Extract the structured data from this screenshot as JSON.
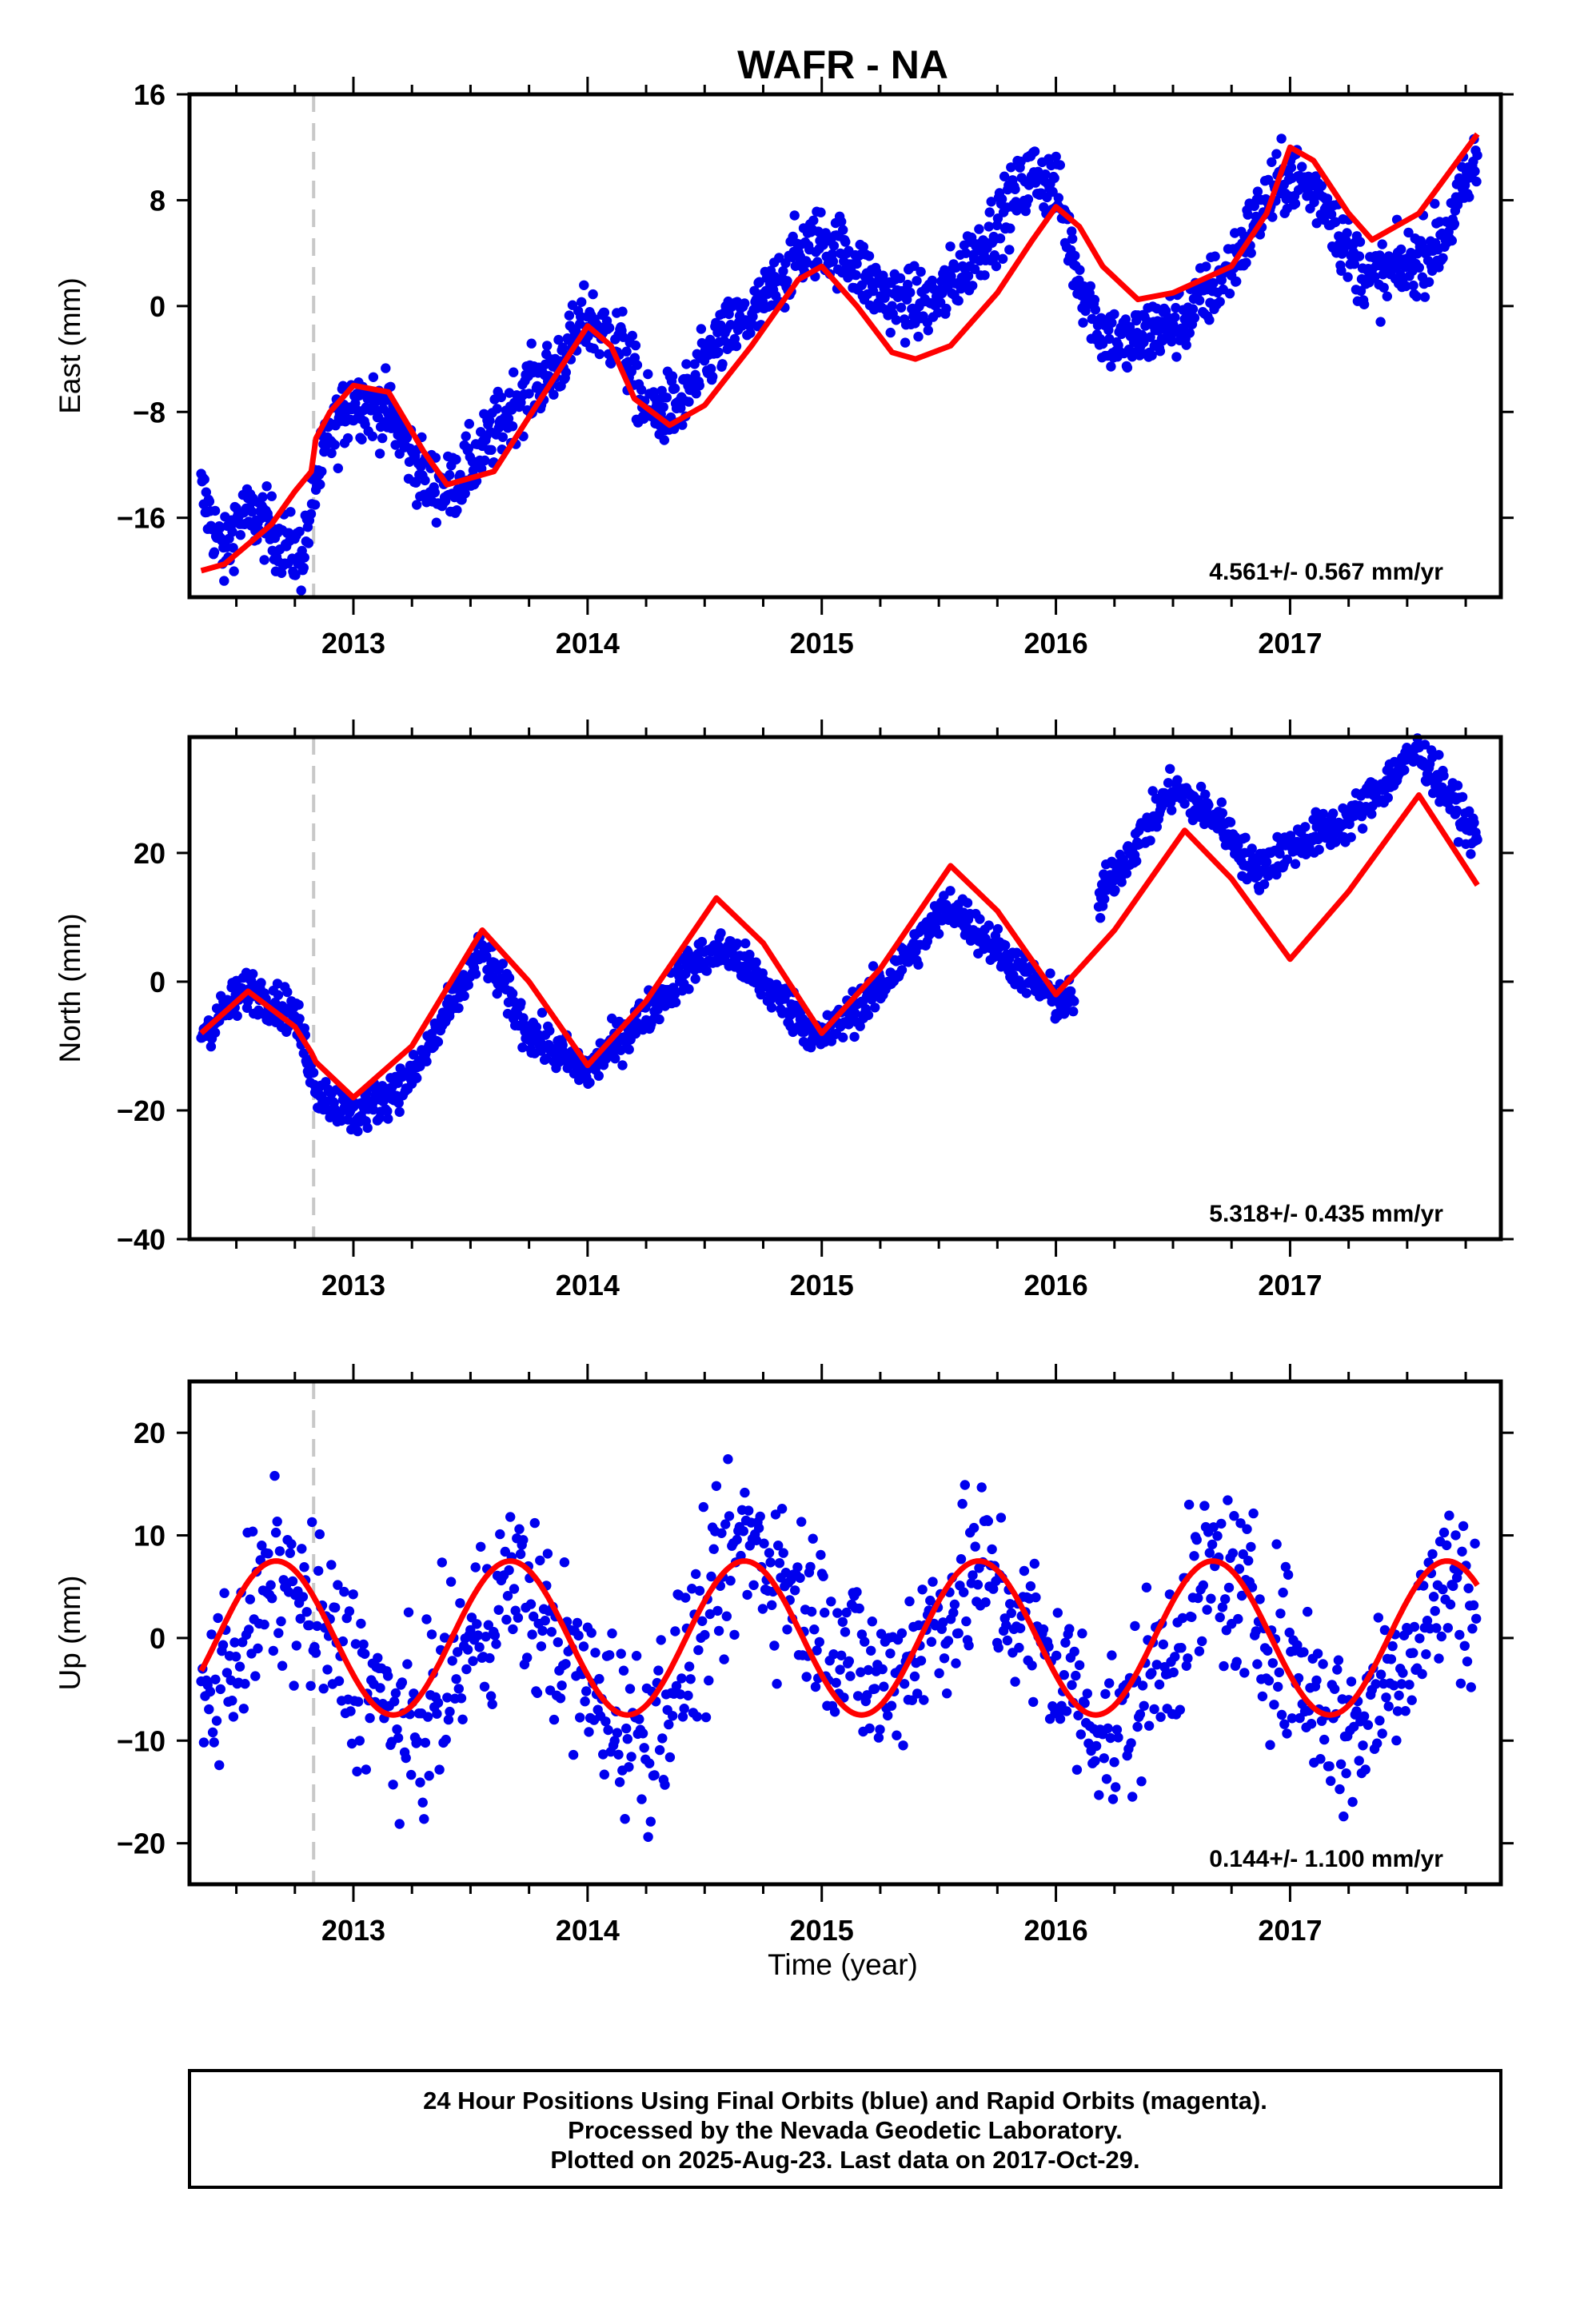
{
  "chart_data": {
    "title": "WAFR - NA",
    "footer": [
      "24 Hour Positions Using Final Orbits (blue) and Rapid Orbits (magenta).",
      "Processed by the Nevada Geodetic Laboratory.",
      "Plotted on 2025-Aug-23. Last data on 2017-Oct-29."
    ],
    "xlabel": "Time (year)",
    "xlim": [
      2012.3,
      2017.9
    ],
    "xticks": [
      "2013",
      "2014",
      "2015",
      "2016",
      "2017"
    ],
    "colors": {
      "points": "#0000ee",
      "model": "#ff0000",
      "event": "#c8c8c8"
    },
    "event_line_x": 2012.83,
    "panels": [
      {
        "name": "east",
        "type": "scatter",
        "ylabel": "East (mm)",
        "ylim": [
          -22,
          16
        ],
        "yticks": [
          "-16",
          "-8",
          "0",
          "8",
          "16"
        ],
        "rate_label": "4.561+/- 0.567 mm/yr",
        "model": {
          "x": [
            2012.35,
            2012.45,
            2012.55,
            2012.65,
            2012.75,
            2012.82,
            2012.84,
            2012.9,
            2013.0,
            2013.15,
            2013.3,
            2013.4,
            2013.6,
            2013.8,
            2014.0,
            2014.1,
            2014.2,
            2014.35,
            2014.5,
            2014.7,
            2014.9,
            2015.0,
            2015.15,
            2015.3,
            2015.4,
            2015.55,
            2015.75,
            2015.9,
            2016.0,
            2016.1,
            2016.2,
            2016.35,
            2016.5,
            2016.75,
            2016.9,
            2017.0,
            2017.1,
            2017.25,
            2017.35,
            2017.55,
            2017.8
          ],
          "y": [
            -20,
            -19.5,
            -18,
            -16.5,
            -14,
            -12.5,
            -10,
            -8,
            -6,
            -6.5,
            -11,
            -13.5,
            -12.5,
            -7,
            -1.5,
            -3,
            -7,
            -9,
            -7.5,
            -3,
            2,
            3,
            0,
            -3.5,
            -4,
            -3,
            1,
            5,
            7.5,
            6,
            3,
            0.5,
            1,
            3,
            7,
            12,
            11,
            7,
            5,
            7,
            13
          ]
        },
        "points_path": [
          [
            2012.35,
            -14
          ],
          [
            2012.45,
            -19
          ],
          [
            2012.5,
            -16
          ],
          [
            2012.6,
            -16
          ],
          [
            2012.7,
            -18
          ],
          [
            2012.78,
            -19
          ],
          [
            2012.83,
            -14
          ],
          [
            2012.9,
            -10
          ],
          [
            2013.0,
            -7
          ],
          [
            2013.15,
            -8
          ],
          [
            2013.3,
            -13
          ],
          [
            2013.4,
            -14
          ],
          [
            2013.55,
            -11
          ],
          [
            2013.7,
            -7
          ],
          [
            2013.85,
            -5
          ],
          [
            2014.0,
            -1
          ],
          [
            2014.15,
            -3
          ],
          [
            2014.25,
            -8
          ],
          [
            2014.4,
            -7.5
          ],
          [
            2014.55,
            -3
          ],
          [
            2014.75,
            0
          ],
          [
            2014.9,
            4
          ],
          [
            2015.0,
            5
          ],
          [
            2015.1,
            4
          ],
          [
            2015.25,
            1
          ],
          [
            2015.4,
            0
          ],
          [
            2015.5,
            0.5
          ],
          [
            2015.7,
            5
          ],
          [
            2015.9,
            10
          ],
          [
            2016.0,
            9
          ],
          [
            2016.1,
            2
          ],
          [
            2016.2,
            -2
          ],
          [
            2016.3,
            -3
          ],
          [
            2016.4,
            -2
          ],
          [
            2016.55,
            -1
          ],
          [
            2016.75,
            3
          ],
          [
            2016.9,
            8
          ],
          [
            2017.0,
            10
          ],
          [
            2017.15,
            8
          ],
          [
            2017.25,
            4
          ],
          [
            2017.35,
            2
          ],
          [
            2017.5,
            3
          ],
          [
            2017.65,
            5
          ],
          [
            2017.8,
            11
          ]
        ]
      },
      {
        "name": "north",
        "type": "scatter",
        "ylabel": "North (mm)",
        "ylim": [
          -40,
          38
        ],
        "yticks": [
          "-40",
          "-20",
          "0",
          "20"
        ],
        "rate_label": "5.318+/- 0.435 mm/yr",
        "model": {
          "x": [
            2012.35,
            2012.55,
            2012.75,
            2012.82,
            2012.84,
            2013.0,
            2013.25,
            2013.55,
            2013.75,
            2014.0,
            2014.25,
            2014.55,
            2014.75,
            2015.0,
            2015.25,
            2015.55,
            2015.75,
            2016.0,
            2016.25,
            2016.55,
            2016.75,
            2017.0,
            2017.25,
            2017.55,
            2017.8
          ],
          "y": [
            -8,
            -1.5,
            -7,
            -11,
            -12.5,
            -18,
            -10,
            8,
            0,
            -13,
            -3,
            13,
            6,
            -8,
            2,
            18,
            11,
            -2,
            8,
            23.5,
            16,
            3.5,
            14,
            29,
            15
          ]
        },
        "points_path": [
          [
            2012.35,
            -8
          ],
          [
            2012.55,
            -1
          ],
          [
            2012.75,
            -5
          ],
          [
            2012.85,
            -17
          ],
          [
            2013.0,
            -21
          ],
          [
            2013.25,
            -15
          ],
          [
            2013.55,
            5
          ],
          [
            2013.75,
            -8
          ],
          [
            2014.0,
            -14
          ],
          [
            2014.25,
            -5
          ],
          [
            2014.45,
            3
          ],
          [
            2014.6,
            5
          ],
          [
            2014.8,
            -2
          ],
          [
            2015.0,
            -9
          ],
          [
            2015.25,
            -1
          ],
          [
            2015.55,
            12
          ],
          [
            2015.75,
            5
          ],
          [
            2016.0,
            -3
          ],
          [
            2016.1,
            -3
          ],
          [
            2016.2,
            14
          ],
          [
            2016.5,
            30
          ],
          [
            2016.7,
            25
          ],
          [
            2016.85,
            17
          ],
          [
            2017.0,
            21
          ],
          [
            2017.25,
            25
          ],
          [
            2017.55,
            36
          ],
          [
            2017.8,
            22
          ]
        ]
      },
      {
        "name": "up",
        "type": "scatter",
        "ylabel": "Up (mm)",
        "ylim": [
          -24,
          25
        ],
        "yticks": [
          "-20",
          "-10",
          "0",
          "10",
          "20"
        ],
        "rate_label": "0.144+/- 1.100 mm/yr",
        "model": {
          "period_start": 2012.42,
          "amplitude": 7.5,
          "offset": 0
        },
        "points_path": [
          [
            2012.35,
            -7
          ],
          [
            2012.68,
            6
          ],
          [
            2013.0,
            -3
          ],
          [
            2013.25,
            -10
          ],
          [
            2013.68,
            6
          ],
          [
            2014.0,
            -5
          ],
          [
            2014.25,
            -10
          ],
          [
            2014.68,
            10
          ],
          [
            2015.0,
            2
          ],
          [
            2015.25,
            -5
          ],
          [
            2015.68,
            7
          ],
          [
            2016.0,
            -3
          ],
          [
            2016.25,
            -10
          ],
          [
            2016.68,
            7
          ],
          [
            2017.0,
            -2
          ],
          [
            2017.25,
            -10
          ],
          [
            2017.68,
            6
          ],
          [
            2017.8,
            3
          ]
        ]
      }
    ]
  }
}
